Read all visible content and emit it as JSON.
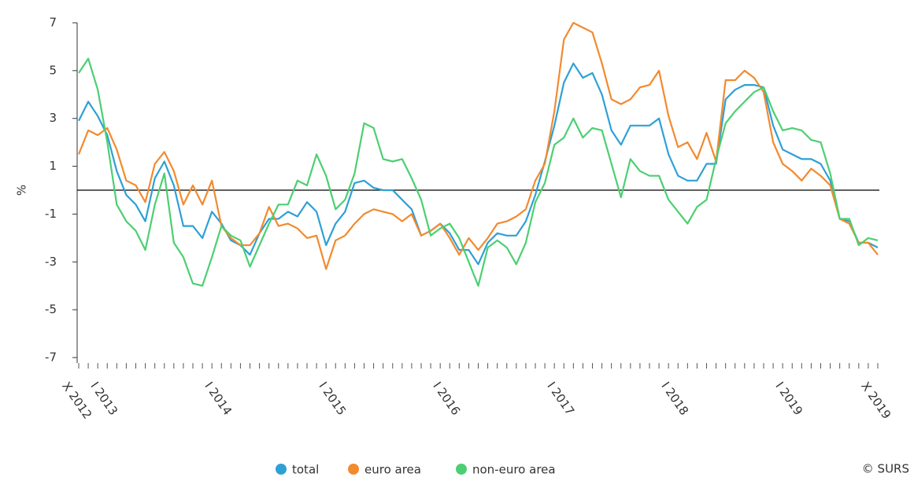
{
  "chart_data": {
    "type": "line",
    "y_label": "%",
    "source": "© SURS",
    "categories": [
      "X 2012",
      null,
      null,
      "I 2013",
      null,
      null,
      null,
      null,
      null,
      null,
      null,
      null,
      null,
      null,
      null,
      "I 2014",
      null,
      null,
      null,
      null,
      null,
      null,
      null,
      null,
      null,
      null,
      null,
      "I 2015",
      null,
      null,
      null,
      null,
      null,
      null,
      null,
      null,
      null,
      null,
      null,
      "I 2016",
      null,
      null,
      null,
      null,
      null,
      null,
      null,
      null,
      null,
      null,
      null,
      "I 2017",
      null,
      null,
      null,
      null,
      null,
      null,
      null,
      null,
      null,
      null,
      null,
      "I 2018",
      null,
      null,
      null,
      null,
      null,
      null,
      null,
      null,
      null,
      null,
      null,
      "I 2019",
      null,
      null,
      null,
      null,
      null,
      null,
      null,
      null,
      "X 2019"
    ],
    "series": [
      {
        "name": "total",
        "color": "#2ea0d6",
        "values": [
          2.9,
          3.7,
          3.1,
          2.3,
          0.8,
          -0.2,
          -0.6,
          -1.3,
          0.5,
          1.2,
          0.2,
          -1.5,
          -1.5,
          -2.0,
          -0.9,
          -1.4,
          -2.1,
          -2.3,
          -2.7,
          -1.8,
          -1.2,
          -1.2,
          -0.9,
          -1.1,
          -0.5,
          -0.9,
          -2.3,
          -1.4,
          -0.9,
          0.3,
          0.4,
          0.1,
          0.0,
          0.0,
          -0.4,
          -0.8,
          -1.9,
          -1.7,
          -1.4,
          -1.8,
          -2.5,
          -2.5,
          -3.1,
          -2.2,
          -1.8,
          -1.9,
          -1.9,
          -1.3,
          -0.2,
          1.2,
          2.7,
          4.5,
          5.3,
          4.7,
          4.9,
          4.0,
          2.5,
          1.9,
          2.7,
          2.7,
          2.7,
          3.0,
          1.5,
          0.6,
          0.4,
          0.4,
          1.1,
          1.1,
          3.8,
          4.2,
          4.4,
          4.4,
          4.3,
          2.7,
          1.7,
          1.5,
          1.3,
          1.3,
          1.1,
          0.4,
          -1.2,
          -1.3,
          -2.2,
          -2.2,
          -2.4
        ]
      },
      {
        "name": "euro area",
        "color": "#f28a2e",
        "values": [
          1.5,
          2.5,
          2.3,
          2.6,
          1.7,
          0.4,
          0.2,
          -0.5,
          1.1,
          1.6,
          0.8,
          -0.6,
          0.2,
          -0.6,
          0.4,
          -1.5,
          -2.0,
          -2.3,
          -2.3,
          -1.8,
          -0.7,
          -1.5,
          -1.4,
          -1.6,
          -2.0,
          -1.9,
          -3.3,
          -2.1,
          -1.9,
          -1.4,
          -1.0,
          -0.8,
          -0.9,
          -1.0,
          -1.3,
          -1.0,
          -1.9,
          -1.7,
          -1.4,
          -2.0,
          -2.7,
          -2.0,
          -2.5,
          -2.0,
          -1.4,
          -1.3,
          -1.1,
          -0.8,
          0.4,
          1.1,
          3.3,
          6.3,
          7.0,
          6.8,
          6.6,
          5.3,
          3.8,
          3.6,
          3.8,
          4.3,
          4.4,
          5.0,
          3.1,
          1.8,
          2.0,
          1.3,
          2.4,
          1.2,
          4.6,
          4.6,
          5.0,
          4.7,
          4.1,
          2.0,
          1.1,
          0.8,
          0.4,
          0.9,
          0.6,
          0.2,
          -1.2,
          -1.4,
          -2.2,
          -2.2,
          -2.7
        ]
      },
      {
        "name": "non-euro area",
        "color": "#4ccf72",
        "values": [
          4.9,
          5.5,
          4.2,
          2.0,
          -0.6,
          -1.3,
          -1.7,
          -2.5,
          -0.6,
          0.7,
          -2.2,
          -2.8,
          -3.9,
          -4.0,
          -2.8,
          -1.5,
          -1.9,
          -2.1,
          -3.2,
          -2.3,
          -1.4,
          -0.6,
          -0.6,
          0.4,
          0.2,
          1.5,
          0.6,
          -0.8,
          -0.4,
          0.7,
          2.8,
          2.6,
          1.3,
          1.2,
          1.3,
          0.5,
          -0.4,
          -1.9,
          -1.6,
          -1.4,
          -2.0,
          -3.0,
          -4.0,
          -2.4,
          -2.1,
          -2.4,
          -3.1,
          -2.2,
          -0.5,
          0.3,
          1.9,
          2.2,
          3.0,
          2.2,
          2.6,
          2.5,
          1.1,
          -0.3,
          1.3,
          0.8,
          0.6,
          0.6,
          -0.4,
          -0.9,
          -1.4,
          -0.7,
          -0.4,
          1.3,
          2.8,
          3.3,
          3.7,
          4.1,
          4.3,
          3.3,
          2.5,
          2.6,
          2.5,
          2.1,
          2.0,
          0.7,
          -1.2,
          -1.2,
          -2.3,
          -2.0,
          -2.1
        ]
      }
    ],
    "ylim": [
      -7,
      7
    ],
    "yticks": [
      -7,
      -5,
      -3,
      -1,
      1,
      3,
      5,
      7
    ],
    "grid": false,
    "legend": "bottom"
  }
}
